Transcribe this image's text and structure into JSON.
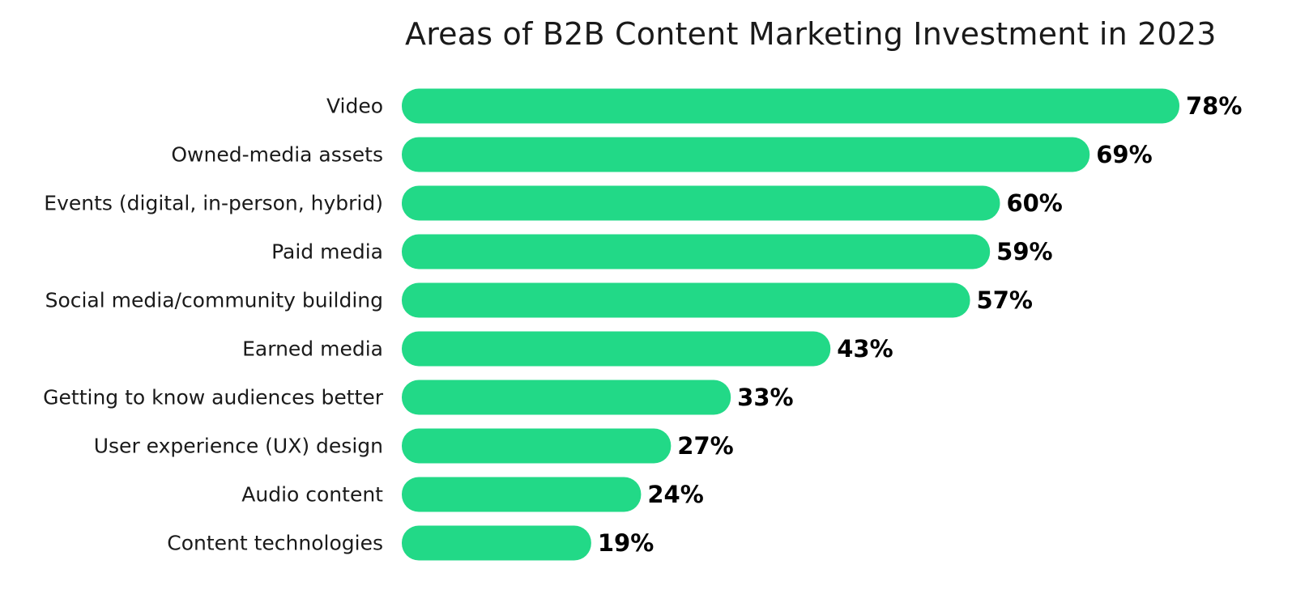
{
  "chart_data": {
    "type": "bar",
    "orientation": "horizontal",
    "title": "Areas of B2B Content Marketing Investment in 2023",
    "categories": [
      "Video",
      "Owned-media assets",
      "Events (digital, in-person, hybrid)",
      "Paid media",
      "Social media/community building",
      "Earned media",
      "Getting to know audiences better",
      "User experience (UX) design",
      "Audio content",
      "Content technologies"
    ],
    "values": [
      78,
      69,
      60,
      59,
      57,
      43,
      33,
      27,
      24,
      19
    ],
    "value_labels": [
      "78%",
      "69%",
      "60%",
      "59%",
      "57%",
      "43%",
      "33%",
      "27%",
      "24%",
      "19%"
    ],
    "unit": "%",
    "xlim": [
      0,
      78
    ],
    "grid": false,
    "legend": "none",
    "colors": {
      "bar": "#22d987",
      "text": "#1a1a1a",
      "value_text": "#000000"
    }
  }
}
